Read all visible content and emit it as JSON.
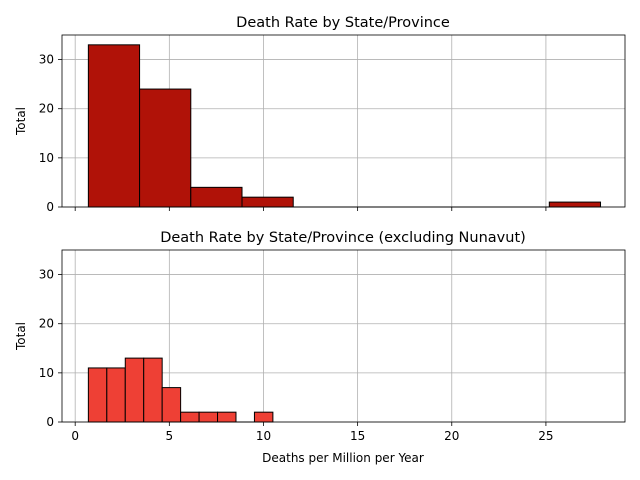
{
  "chart_data": [
    {
      "type": "histogram",
      "title": "Death Rate by State/Province",
      "xlabel": "",
      "ylabel": "Total",
      "xlim": [
        -0.7,
        29.2
      ],
      "ylim": [
        0,
        35
      ],
      "xticks": [
        0,
        5,
        10,
        15,
        20,
        25
      ],
      "xticklabels_visible": false,
      "yticks": [
        0,
        10,
        20,
        30
      ],
      "grid": true,
      "bar_color": "#b01208",
      "bins": [
        {
          "start": 0.7,
          "end": 3.42,
          "count": 33
        },
        {
          "start": 3.42,
          "end": 6.14,
          "count": 24
        },
        {
          "start": 6.14,
          "end": 8.86,
          "count": 4
        },
        {
          "start": 8.86,
          "end": 11.58,
          "count": 2
        },
        {
          "start": 11.58,
          "end": 14.3,
          "count": 0
        },
        {
          "start": 14.3,
          "end": 17.02,
          "count": 0
        },
        {
          "start": 17.02,
          "end": 19.74,
          "count": 0
        },
        {
          "start": 19.74,
          "end": 22.46,
          "count": 0
        },
        {
          "start": 22.46,
          "end": 25.18,
          "count": 0
        },
        {
          "start": 25.18,
          "end": 27.9,
          "count": 1
        }
      ]
    },
    {
      "type": "histogram",
      "title": "Death Rate by State/Province (excluding Nunavut)",
      "xlabel": "Deaths per Million per Year",
      "ylabel": "Total",
      "xlim": [
        -0.7,
        29.2
      ],
      "ylim": [
        0,
        35
      ],
      "xticks": [
        0,
        5,
        10,
        15,
        20,
        25
      ],
      "xticklabels_visible": true,
      "yticks": [
        0,
        10,
        20,
        30
      ],
      "grid": true,
      "bar_color": "#ee4035",
      "bins": [
        {
          "start": 0.7,
          "end": 1.68,
          "count": 11
        },
        {
          "start": 1.68,
          "end": 2.66,
          "count": 11
        },
        {
          "start": 2.66,
          "end": 3.64,
          "count": 13
        },
        {
          "start": 3.64,
          "end": 4.62,
          "count": 13
        },
        {
          "start": 4.62,
          "end": 5.6,
          "count": 7
        },
        {
          "start": 5.6,
          "end": 6.58,
          "count": 2
        },
        {
          "start": 6.58,
          "end": 7.56,
          "count": 2
        },
        {
          "start": 7.56,
          "end": 8.54,
          "count": 2
        },
        {
          "start": 8.54,
          "end": 9.52,
          "count": 0
        },
        {
          "start": 9.52,
          "end": 10.5,
          "count": 2
        }
      ]
    }
  ]
}
